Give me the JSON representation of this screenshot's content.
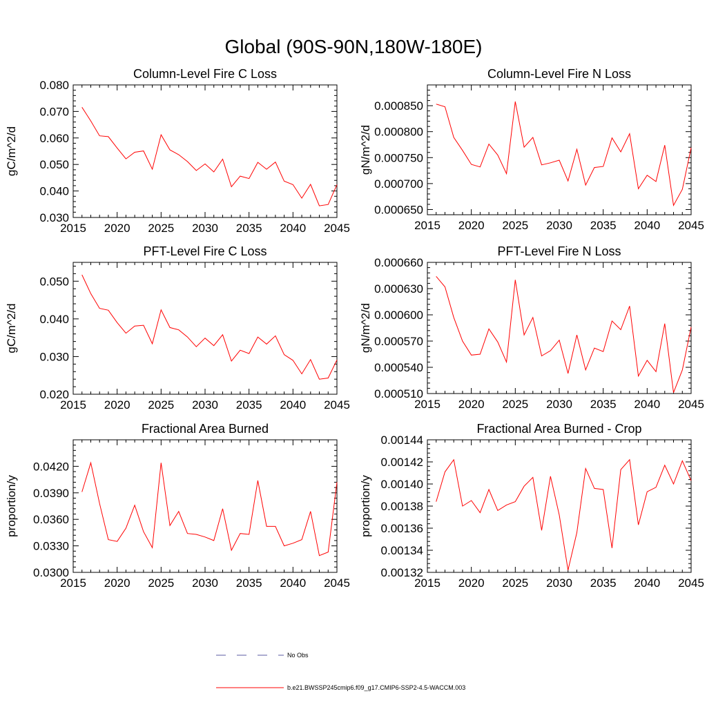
{
  "title": "Global (90S-90N,180W-180E)",
  "legend": {
    "entries": [
      {
        "label": "No Obs",
        "color": "#5a5aa0",
        "style": "dashed"
      },
      {
        "label": "b.e21.BWSSP245cmip6.f09_g17.CMIP6-SSP2-4.5-WACCM.003",
        "color": "#ff0000",
        "style": "solid"
      }
    ]
  },
  "chart_data": [
    {
      "type": "line",
      "title": "Column-Level Fire C Loss",
      "ylabel": "gC/m^2/d",
      "xlim": [
        2015,
        2045
      ],
      "ylim": [
        0.03,
        0.08
      ],
      "xticks": [
        2015,
        2020,
        2025,
        2030,
        2035,
        2040,
        2045
      ],
      "xtick_labels": [
        "2015",
        "2020",
        "2025",
        "2030",
        "2035",
        "2040",
        "2045"
      ],
      "yticks": [
        0.03,
        0.04,
        0.05,
        0.06,
        0.07,
        0.08
      ],
      "ytick_labels": [
        "0.030",
        "0.040",
        "0.050",
        "0.060",
        "0.070",
        "0.080"
      ],
      "x": [
        2016,
        2017,
        2018,
        2019,
        2020,
        2021,
        2022,
        2023,
        2024,
        2025,
        2026,
        2027,
        2028,
        2029,
        2030,
        2031,
        2032,
        2033,
        2034,
        2035,
        2036,
        2037,
        2038,
        2039,
        2040,
        2041,
        2042,
        2043,
        2044,
        2045
      ],
      "series": [
        {
          "color": "#ff0000",
          "values": [
            0.0716,
            0.0664,
            0.0608,
            0.0605,
            0.0562,
            0.0521,
            0.0546,
            0.0551,
            0.0482,
            0.0612,
            0.0555,
            0.0537,
            0.0511,
            0.0477,
            0.0502,
            0.0472,
            0.052,
            0.0416,
            0.0456,
            0.0447,
            0.0508,
            0.0482,
            0.0509,
            0.0437,
            0.0424,
            0.0373,
            0.0425,
            0.0344,
            0.0349,
            0.0424
          ]
        }
      ]
    },
    {
      "type": "line",
      "title": "Column-Level Fire N Loss",
      "ylabel": "gN/m^2/d",
      "xlim": [
        2015,
        2045
      ],
      "ylim": [
        0.00064,
        0.00089
      ],
      "xticks": [
        2015,
        2020,
        2025,
        2030,
        2035,
        2040,
        2045
      ],
      "xtick_labels": [
        "2015",
        "2020",
        "2025",
        "2030",
        "2035",
        "2040",
        "2045"
      ],
      "yticks": [
        0.00065,
        0.0007,
        0.00075,
        0.0008,
        0.00085
      ],
      "ytick_labels": [
        "0.000650",
        "0.000700",
        "0.000750",
        "0.000800",
        "0.000850"
      ],
      "x": [
        2016,
        2017,
        2018,
        2019,
        2020,
        2021,
        2022,
        2023,
        2024,
        2025,
        2026,
        2027,
        2028,
        2029,
        2030,
        2031,
        2032,
        2033,
        2034,
        2035,
        2036,
        2037,
        2038,
        2039,
        2040,
        2041,
        2042,
        2043,
        2044,
        2045
      ],
      "series": [
        {
          "color": "#ff0000",
          "values": [
            0.000853,
            0.000848,
            0.000789,
            0.000764,
            0.000737,
            0.000732,
            0.000776,
            0.000755,
            0.000719,
            0.000858,
            0.00077,
            0.000789,
            0.000736,
            0.00074,
            0.000745,
            0.000705,
            0.000766,
            0.000697,
            0.000731,
            0.000733,
            0.000788,
            0.000761,
            0.000796,
            0.00069,
            0.000716,
            0.000704,
            0.000774,
            0.000658,
            0.000689,
            0.000769
          ]
        }
      ]
    },
    {
      "type": "line",
      "title": "PFT-Level Fire C Loss",
      "ylabel": "gC/m^2/d",
      "xlim": [
        2015,
        2045
      ],
      "ylim": [
        0.02,
        0.055
      ],
      "xticks": [
        2015,
        2020,
        2025,
        2030,
        2035,
        2040,
        2045
      ],
      "xtick_labels": [
        "2015",
        "2020",
        "2025",
        "2030",
        "2035",
        "2040",
        "2045"
      ],
      "yticks": [
        0.02,
        0.03,
        0.04,
        0.05
      ],
      "ytick_labels": [
        "0.020",
        "0.030",
        "0.040",
        "0.050"
      ],
      "x": [
        2016,
        2017,
        2018,
        2019,
        2020,
        2021,
        2022,
        2023,
        2024,
        2025,
        2026,
        2027,
        2028,
        2029,
        2030,
        2031,
        2032,
        2033,
        2034,
        2035,
        2036,
        2037,
        2038,
        2039,
        2040,
        2041,
        2042,
        2043,
        2044,
        2045
      ],
      "series": [
        {
          "color": "#ff0000",
          "values": [
            0.0517,
            0.0467,
            0.0428,
            0.0423,
            0.039,
            0.0362,
            0.0381,
            0.0383,
            0.0334,
            0.0424,
            0.0377,
            0.0371,
            0.0352,
            0.0326,
            0.0349,
            0.0329,
            0.0358,
            0.0288,
            0.0317,
            0.0308,
            0.0352,
            0.0333,
            0.0355,
            0.0305,
            0.029,
            0.0254,
            0.0292,
            0.024,
            0.0243,
            0.0291
          ]
        }
      ]
    },
    {
      "type": "line",
      "title": "PFT-Level Fire N Loss",
      "ylabel": "gN/m^2/d",
      "xlim": [
        2015,
        2045
      ],
      "ylim": [
        0.00051,
        0.00066
      ],
      "xticks": [
        2015,
        2020,
        2025,
        2030,
        2035,
        2040,
        2045
      ],
      "xtick_labels": [
        "2015",
        "2020",
        "2025",
        "2030",
        "2035",
        "2040",
        "2045"
      ],
      "yticks": [
        0.00051,
        0.00054,
        0.00057,
        0.0006,
        0.00063,
        0.00066
      ],
      "ytick_labels": [
        "0.000510",
        "0.000540",
        "0.000570",
        "0.000600",
        "0.000630",
        "0.000660"
      ],
      "x": [
        2016,
        2017,
        2018,
        2019,
        2020,
        2021,
        2022,
        2023,
        2024,
        2025,
        2026,
        2027,
        2028,
        2029,
        2030,
        2031,
        2032,
        2033,
        2034,
        2035,
        2036,
        2037,
        2038,
        2039,
        2040,
        2041,
        2042,
        2043,
        2044,
        2045
      ],
      "series": [
        {
          "color": "#ff0000",
          "values": [
            0.000644,
            0.000632,
            0.000597,
            0.00057,
            0.000554,
            0.000555,
            0.000584,
            0.000569,
            0.000546,
            0.00064,
            0.000577,
            0.000597,
            0.000553,
            0.000559,
            0.000571,
            0.000533,
            0.000577,
            0.000537,
            0.000562,
            0.000558,
            0.000593,
            0.000583,
            0.00061,
            0.00053,
            0.000548,
            0.000535,
            0.00059,
            0.000511,
            0.000537,
            0.000586
          ]
        }
      ]
    },
    {
      "type": "line",
      "title": "Fractional Area Burned",
      "ylabel": "proportion/y",
      "xlim": [
        2015,
        2045
      ],
      "ylim": [
        0.03,
        0.045
      ],
      "xticks": [
        2015,
        2020,
        2025,
        2030,
        2035,
        2040,
        2045
      ],
      "xtick_labels": [
        "2015",
        "2020",
        "2025",
        "2030",
        "2035",
        "2040",
        "2045"
      ],
      "yticks": [
        0.03,
        0.033,
        0.036,
        0.039,
        0.042
      ],
      "ytick_labels": [
        "0.0300",
        "0.0330",
        "0.0360",
        "0.0390",
        "0.0420"
      ],
      "x": [
        2016,
        2017,
        2018,
        2019,
        2020,
        2021,
        2022,
        2023,
        2024,
        2025,
        2026,
        2027,
        2028,
        2029,
        2030,
        2031,
        2032,
        2033,
        2034,
        2035,
        2036,
        2037,
        2038,
        2039,
        2040,
        2041,
        2042,
        2043,
        2044,
        2045
      ],
      "series": [
        {
          "color": "#ff0000",
          "values": [
            0.0391,
            0.0424,
            0.0378,
            0.0337,
            0.0335,
            0.035,
            0.0376,
            0.0346,
            0.0328,
            0.0424,
            0.0353,
            0.0369,
            0.0344,
            0.0343,
            0.034,
            0.0336,
            0.0372,
            0.0325,
            0.0344,
            0.0343,
            0.0404,
            0.0352,
            0.0352,
            0.033,
            0.0333,
            0.0337,
            0.0369,
            0.0319,
            0.0323,
            0.0402
          ]
        }
      ]
    },
    {
      "type": "line",
      "title": "Fractional Area Burned - Crop",
      "ylabel": "proportion/y",
      "xlim": [
        2015,
        2045
      ],
      "ylim": [
        0.00132,
        0.00144
      ],
      "xticks": [
        2015,
        2020,
        2025,
        2030,
        2035,
        2040,
        2045
      ],
      "xtick_labels": [
        "2015",
        "2020",
        "2025",
        "2030",
        "2035",
        "2040",
        "2045"
      ],
      "yticks": [
        0.00132,
        0.00134,
        0.00136,
        0.00138,
        0.0014,
        0.00142,
        0.00144
      ],
      "ytick_labels": [
        "0.00132",
        "0.00134",
        "0.00136",
        "0.00138",
        "0.00140",
        "0.00142",
        "0.00144"
      ],
      "x": [
        2016,
        2017,
        2018,
        2019,
        2020,
        2021,
        2022,
        2023,
        2024,
        2025,
        2026,
        2027,
        2028,
        2029,
        2030,
        2031,
        2032,
        2033,
        2034,
        2035,
        2036,
        2037,
        2038,
        2039,
        2040,
        2041,
        2042,
        2043,
        2044,
        2045
      ],
      "series": [
        {
          "color": "#ff0000",
          "values": [
            0.001384,
            0.001411,
            0.001422,
            0.00138,
            0.001385,
            0.001374,
            0.001395,
            0.001376,
            0.001381,
            0.001384,
            0.001398,
            0.001406,
            0.001358,
            0.001407,
            0.001372,
            0.001322,
            0.001356,
            0.001414,
            0.001396,
            0.001395,
            0.001342,
            0.001413,
            0.001422,
            0.001363,
            0.001393,
            0.001397,
            0.001417,
            0.0014,
            0.001421,
            0.001403
          ]
        }
      ]
    }
  ]
}
